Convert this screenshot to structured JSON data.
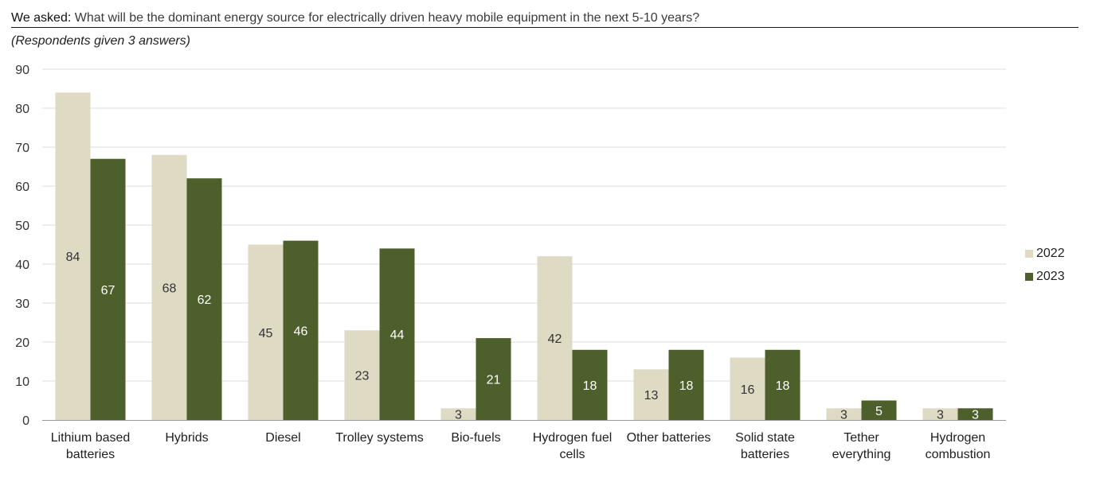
{
  "header": {
    "lead": "We asked:",
    "question": "What will be the dominant energy source for electrically driven heavy mobile equipment in the next 5-10 years?"
  },
  "subtitle": "(Respondents given 3 answers)",
  "colors": {
    "s2022": "#dedac4",
    "s2023": "#4d5f2a",
    "grid": "#dcdcdc",
    "axis": "#999999"
  },
  "chart_data": {
    "type": "bar",
    "title": "What will be the dominant energy source for electrically driven heavy mobile equipment in the next 5-10 years?",
    "subtitle": "(Respondents given 3 answers)",
    "categories": [
      [
        "Lithium based",
        "batteries"
      ],
      [
        "Hybrids"
      ],
      [
        "Diesel"
      ],
      [
        "Trolley systems"
      ],
      [
        "Bio-fuels"
      ],
      [
        "Hydrogen fuel",
        "cells"
      ],
      [
        "Other batteries"
      ],
      [
        "Solid state",
        "batteries"
      ],
      [
        "Tether",
        "everything"
      ],
      [
        "Hydrogen",
        "combustion"
      ]
    ],
    "series": [
      {
        "name": "2022",
        "values": [
          84,
          68,
          45,
          23,
          3,
          42,
          13,
          16,
          3,
          3
        ]
      },
      {
        "name": "2023",
        "values": [
          67,
          62,
          46,
          44,
          21,
          18,
          18,
          18,
          5,
          3
        ]
      }
    ],
    "ylim": [
      0,
      90
    ],
    "yticks": [
      0,
      10,
      20,
      30,
      40,
      50,
      60,
      70,
      80,
      90
    ],
    "grid": true,
    "legend_position": "right"
  }
}
